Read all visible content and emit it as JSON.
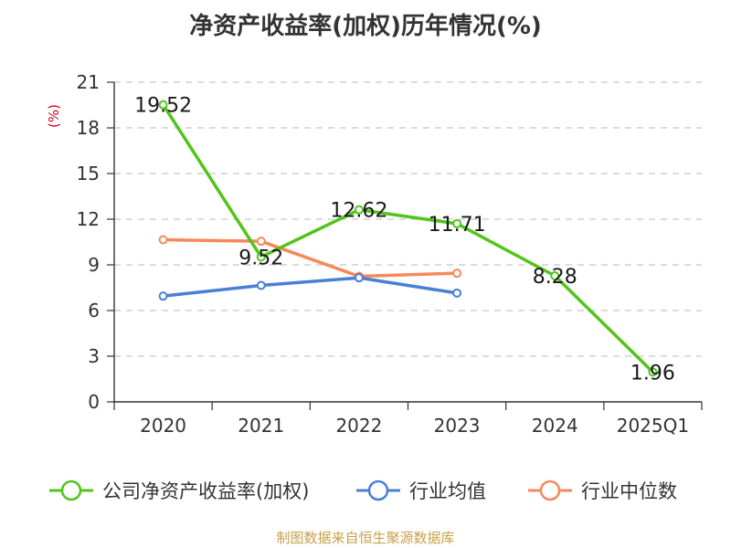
{
  "chart_data": {
    "type": "line",
    "title": "净资产收益率(加权)历年情况(%)",
    "ylabel": "(%)",
    "xlabel": "",
    "categories": [
      "2020",
      "2021",
      "2022",
      "2023",
      "2024",
      "2025Q1"
    ],
    "ylim": [
      0,
      21
    ],
    "yticks": [
      0,
      3,
      6,
      9,
      12,
      15,
      18,
      21
    ],
    "grid": true,
    "legend_position": "bottom",
    "series": [
      {
        "name": "公司净资产收益率(加权)",
        "color": "#52c41a",
        "values": [
          19.52,
          9.52,
          12.62,
          11.71,
          8.28,
          1.96
        ],
        "data_labels": true
      },
      {
        "name": "行业均值",
        "color": "#4a7fd6",
        "values": [
          6.95,
          7.65,
          8.15,
          7.15,
          null,
          null
        ],
        "data_labels": false
      },
      {
        "name": "行业中位数",
        "color": "#f5895a",
        "values": [
          10.65,
          10.55,
          8.25,
          8.45,
          null,
          null
        ],
        "data_labels": false
      }
    ],
    "source": "制图数据来自恒生聚源数据库"
  }
}
